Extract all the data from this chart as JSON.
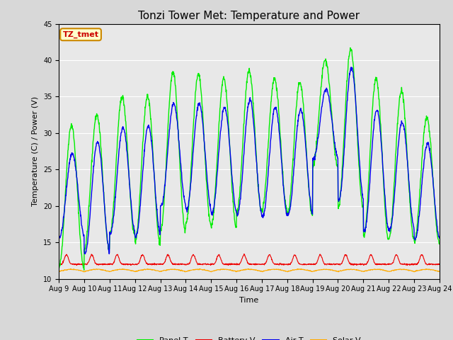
{
  "title": "Tonzi Tower Met: Temperature and Power",
  "xlabel": "Time",
  "ylabel": "Temperature (C) / Power (V)",
  "ylim": [
    10,
    45
  ],
  "num_days": 15,
  "x_tick_labels": [
    "Aug 9",
    "Aug 10",
    "Aug 11",
    "Aug 12",
    "Aug 13",
    "Aug 14",
    "Aug 15",
    "Aug 16",
    "Aug 17",
    "Aug 18",
    "Aug 19",
    "Aug 20",
    "Aug 21",
    "Aug 22",
    "Aug 23",
    "Aug 24"
  ],
  "annotation_text": "TZ_tmet",
  "annotation_box_color": "#ffffcc",
  "annotation_text_color": "#cc0000",
  "annotation_border_color": "#cc8800",
  "fig_bg_color": "#d8d8d8",
  "plot_bg_color": "#e8e8e8",
  "panel_color": "#00ee00",
  "battery_color": "#ee0000",
  "air_color": "#0000ee",
  "solar_color": "#ffaa00",
  "panel_peaks": [
    31.1,
    32.5,
    35.0,
    35.0,
    38.3,
    38.0,
    37.5,
    38.5,
    37.5,
    37.0,
    40.0,
    41.5,
    37.5,
    35.8,
    32.0
  ],
  "panel_troughs": [
    11.5,
    14.0,
    16.0,
    15.0,
    16.5,
    17.5,
    17.2,
    19.2,
    19.5,
    18.8,
    25.5,
    19.8,
    15.5,
    15.5,
    15.0
  ],
  "air_peaks": [
    27.2,
    28.8,
    30.8,
    31.0,
    34.0,
    34.0,
    33.5,
    34.5,
    33.5,
    33.2,
    36.0,
    39.0,
    33.2,
    31.5,
    28.5
  ],
  "air_troughs": [
    15.8,
    13.5,
    16.3,
    15.8,
    20.0,
    19.5,
    19.0,
    18.8,
    18.5,
    18.8,
    26.5,
    20.8,
    16.5,
    16.8,
    15.5
  ],
  "battery_baseline": 12.0,
  "solar_baseline": 11.0,
  "yticks": [
    10,
    15,
    20,
    25,
    30,
    35,
    40,
    45
  ],
  "title_fontsize": 11,
  "label_fontsize": 8,
  "tick_fontsize": 7,
  "legend_fontsize": 8
}
